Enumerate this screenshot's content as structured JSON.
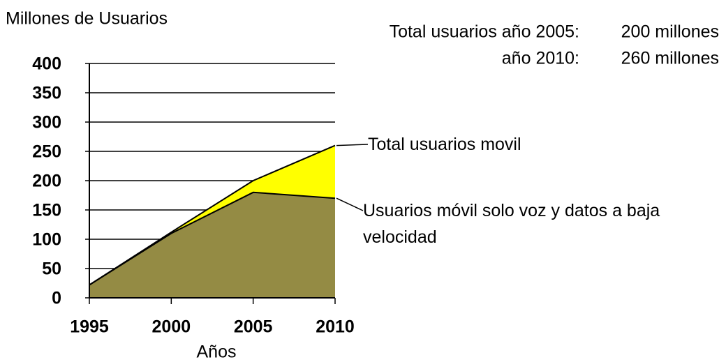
{
  "chart_data": {
    "type": "area",
    "y_label": "Millones de Usuarios",
    "x_label": "Años",
    "x": [
      1995,
      2000,
      2005,
      2010
    ],
    "xlim": [
      1995,
      2010
    ],
    "xticks": [
      1995,
      2000,
      2005,
      2010
    ],
    "ylim": [
      0,
      400
    ],
    "yticks": [
      0,
      50,
      100,
      150,
      200,
      250,
      300,
      350,
      400
    ],
    "grid": true,
    "series": [
      {
        "name": "Total usuarios movil",
        "color": "#ffff00",
        "values": [
          22,
          112,
          200,
          260
        ]
      },
      {
        "name": "Usuarios móvil solo voz y datos a baja velocidad",
        "color": "#948b44",
        "values": [
          22,
          110,
          180,
          170
        ]
      }
    ],
    "annotations": [
      {
        "label": "Total usuarios año 2005:",
        "value": "200 millones"
      },
      {
        "label": "año 2010:",
        "value": "260 millones"
      }
    ]
  }
}
